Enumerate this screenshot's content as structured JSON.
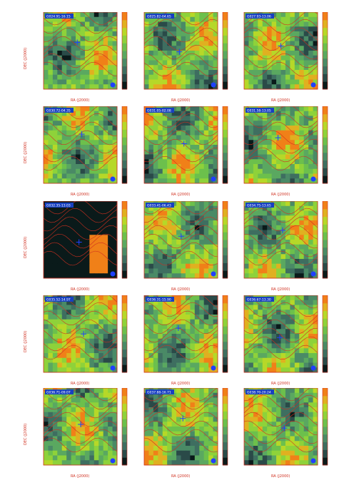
{
  "figure": {
    "panels": [
      {
        "title": "G024.91-16.15"
      },
      {
        "title": "G025.82-04.65"
      },
      {
        "title": "G027.93-13.06"
      },
      {
        "title": "G030.72-04.35"
      },
      {
        "title": "G031.05-02.08"
      },
      {
        "title": "G031.58-13.05"
      },
      {
        "title": "G032.35-13.03"
      },
      {
        "title": "G033.41-06.43"
      },
      {
        "title": "G034.75-13.65"
      },
      {
        "title": "G035.52-14.97"
      },
      {
        "title": "G036.31-15.90"
      },
      {
        "title": "G036.67-13.30"
      },
      {
        "title": "G036.71-09.07"
      },
      {
        "title": "G037.88-16.71"
      },
      {
        "title": "G038.70-20.24"
      }
    ],
    "xlabel": "RA (J2000)",
    "ylabel": "DEC (J2000)",
    "colors": {
      "contour": "#d03020",
      "marker": "#2040ff",
      "frame": "#d03020"
    }
  }
}
